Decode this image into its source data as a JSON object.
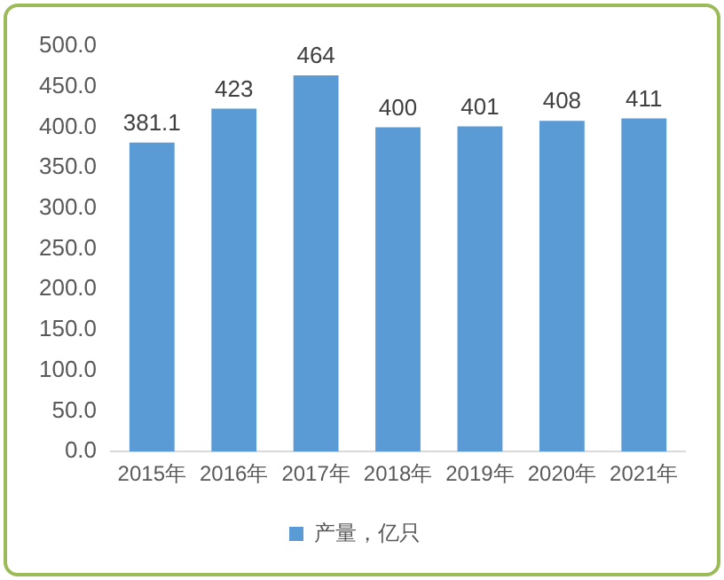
{
  "chart_data": {
    "type": "bar",
    "categories": [
      "2015年",
      "2016年",
      "2017年",
      "2018年",
      "2019年",
      "2020年",
      "2021年"
    ],
    "series": [
      {
        "name": "产量，亿只",
        "color": "#5b9bd5",
        "values": [
          381.1,
          423,
          464,
          400,
          401,
          408,
          411
        ]
      }
    ],
    "ylim": [
      0,
      500
    ],
    "yticks": [
      {
        "value": 0,
        "label": "0.0"
      },
      {
        "value": 50,
        "label": "50.0"
      },
      {
        "value": 100,
        "label": "100.0"
      },
      {
        "value": 150,
        "label": "150.0"
      },
      {
        "value": 200,
        "label": "200.0"
      },
      {
        "value": 250,
        "label": "250.0"
      },
      {
        "value": 300,
        "label": "300.0"
      },
      {
        "value": 350,
        "label": "350.0"
      },
      {
        "value": 400,
        "label": "400.0"
      },
      {
        "value": 450,
        "label": "450.0"
      },
      {
        "value": 500,
        "label": "500.0"
      }
    ],
    "data_labels": true,
    "legend": "bottom",
    "grid": false
  }
}
